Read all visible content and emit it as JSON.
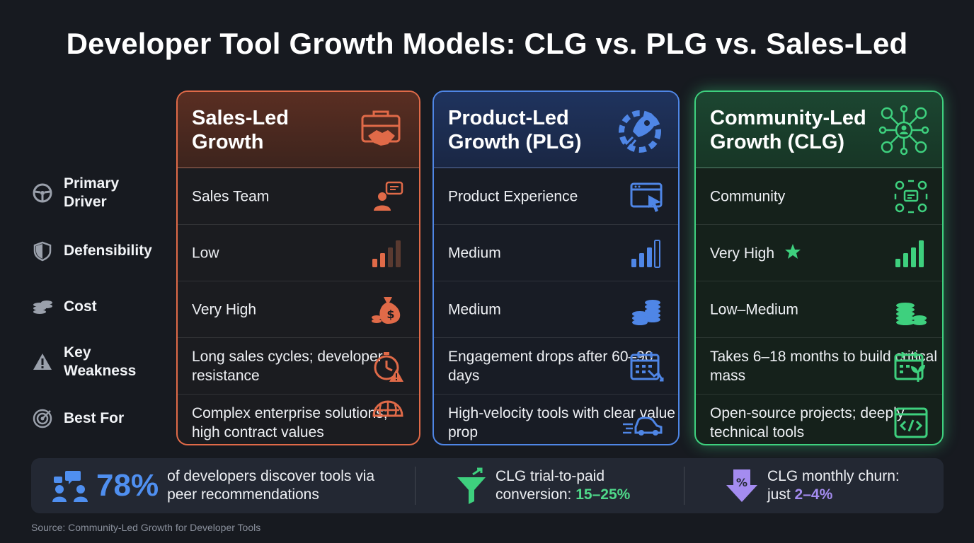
{
  "title": "Developer Tool Growth Models: CLG vs. PLG vs. Sales-Led",
  "row_labels": [
    {
      "label": "Primary Driver",
      "icon": "steering-wheel-icon"
    },
    {
      "label": "Defensibility",
      "icon": "shield-icon"
    },
    {
      "label": "Cost",
      "icon": "coins-icon"
    },
    {
      "label": "Key Weakness",
      "icon": "warning-icon"
    },
    {
      "label": "Best For",
      "icon": "target-icon"
    }
  ],
  "columns": {
    "sales": {
      "title": "Sales-Led Growth",
      "color": "#e06a48",
      "cells": [
        "Sales Team",
        "Low",
        "Very High",
        "Long sales cycles; developer resistance",
        "Complex enterprise solutions; high contract values"
      ]
    },
    "plg": {
      "title": "Product-Led Growth (PLG)",
      "color": "#4f86e6",
      "cells": [
        "Product Experience",
        "Medium",
        "Medium",
        "Engagement drops after 60–90 days",
        "High-velocity tools with clear value prop"
      ]
    },
    "clg": {
      "title": "Community-Led Growth (CLG)",
      "color": "#3ed07e",
      "cells": [
        "Community",
        "Very High",
        "Low–Medium",
        "Takes 6–18 months to build critical mass",
        "Open-source projects; deeply technical tools"
      ]
    }
  },
  "stats": {
    "peer": {
      "value": "78%",
      "text": "of developers discover tools via peer recommendations"
    },
    "conversion": {
      "text": "CLG trial-to-paid conversion:",
      "value": "15–25%"
    },
    "churn": {
      "text": "CLG monthly churn: just",
      "value": "2–4%"
    }
  },
  "source": "Source: Community-Led Growth for Developer Tools"
}
